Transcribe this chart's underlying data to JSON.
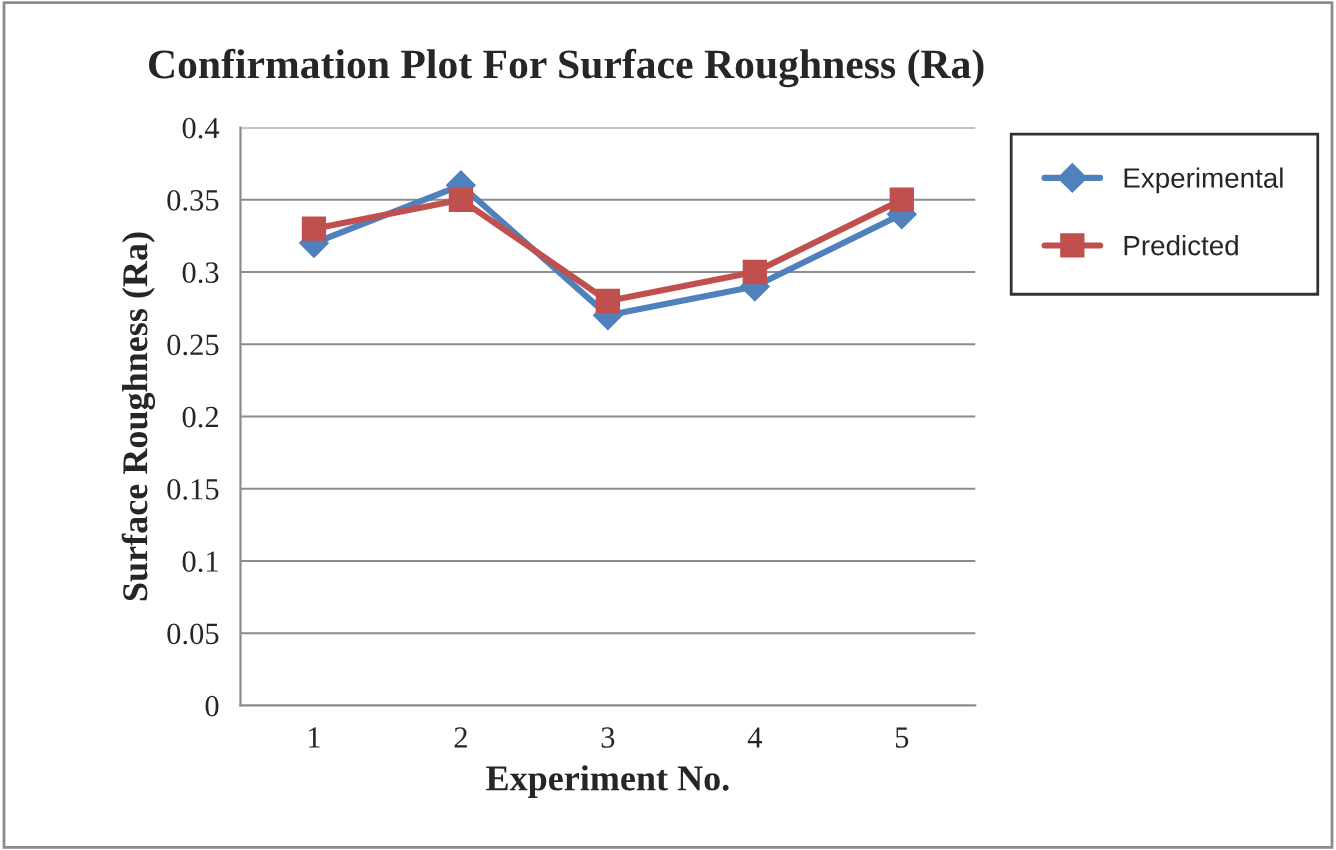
{
  "chart_data": {
    "type": "line",
    "title": "Confirmation Plot For Surface Roughness (Ra)",
    "xlabel": "Experiment No.",
    "ylabel": "Surface Roughness (Ra)",
    "categories": [
      "1",
      "2",
      "3",
      "4",
      "5"
    ],
    "series": [
      {
        "name": "Experimental",
        "color": "#4f81bd",
        "marker": "diamond",
        "values": [
          0.32,
          0.36,
          0.27,
          0.29,
          0.34
        ]
      },
      {
        "name": "Predicted",
        "color": "#c0504d",
        "marker": "square",
        "values": [
          0.33,
          0.35,
          0.28,
          0.3,
          0.35
        ]
      }
    ],
    "ylim": [
      0,
      0.4
    ],
    "yticks": [
      0,
      {
        "value": 0.05,
        "label": "0.05"
      },
      {
        "value": 0.1,
        "label": "0.1"
      },
      {
        "value": 0.15,
        "label": "0.15"
      },
      {
        "value": 0.2,
        "label": "0.2"
      },
      {
        "value": 0.25,
        "label": "0.25"
      },
      {
        "value": 0.3,
        "label": "0.3"
      },
      {
        "value": 0.35,
        "label": "0.35"
      },
      {
        "value": 0.4,
        "label": "0.4"
      }
    ],
    "grid": "y",
    "legend": "right",
    "line_style": "solid"
  }
}
